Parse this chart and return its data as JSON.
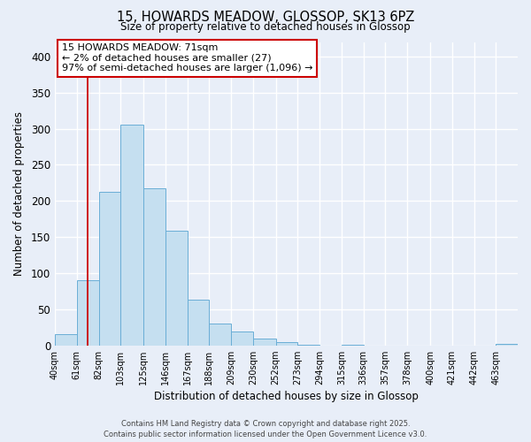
{
  "title": "15, HOWARDS MEADOW, GLOSSOP, SK13 6PZ",
  "subtitle": "Size of property relative to detached houses in Glossop",
  "xlabel": "Distribution of detached houses by size in Glossop",
  "ylabel": "Number of detached properties",
  "bin_labels": [
    "40sqm",
    "61sqm",
    "82sqm",
    "103sqm",
    "125sqm",
    "146sqm",
    "167sqm",
    "188sqm",
    "209sqm",
    "230sqm",
    "252sqm",
    "273sqm",
    "294sqm",
    "315sqm",
    "336sqm",
    "357sqm",
    "378sqm",
    "400sqm",
    "421sqm",
    "442sqm",
    "463sqm"
  ],
  "bar_heights": [
    15,
    90,
    212,
    305,
    217,
    159,
    63,
    30,
    19,
    10,
    4,
    1,
    0,
    1,
    0,
    0,
    0,
    0,
    0,
    0,
    2
  ],
  "bar_color": "#c5dff0",
  "bar_edge_color": "#6aaed6",
  "ylim": [
    0,
    420
  ],
  "yticks": [
    0,
    50,
    100,
    150,
    200,
    250,
    300,
    350,
    400
  ],
  "property_line_x": 71,
  "property_line_color": "#cc0000",
  "annotation_title": "15 HOWARDS MEADOW: 71sqm",
  "annotation_line1": "← 2% of detached houses are smaller (27)",
  "annotation_line2": "97% of semi-detached houses are larger (1,096) →",
  "annotation_box_color": "#cc0000",
  "background_color": "#e8eef8",
  "grid_color": "#ffffff",
  "footer_line1": "Contains HM Land Registry data © Crown copyright and database right 2025.",
  "footer_line2": "Contains public sector information licensed under the Open Government Licence v3.0."
}
